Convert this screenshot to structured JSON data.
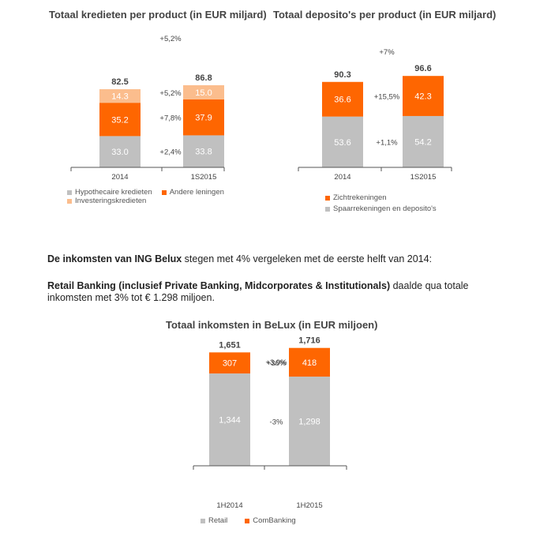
{
  "colors": {
    "grey": "#c0c0c0",
    "orange": "#fe6601",
    "peach": "#fbbd8d",
    "axis": "#555555"
  },
  "paragraphs": {
    "p1_bold": "De inkomsten van ING Belux",
    "p1_rest": " stegen met 4% vergeleken met de eerste helft van 2014:",
    "p2_bold": "Retail Banking (inclusief Private Banking, Midcorporates & Institutionals)",
    "p2_rest": " daalde qua totale inkomsten met 3% tot € 1.298 miljoen."
  },
  "chart_data": [
    {
      "type": "bar",
      "stacked": true,
      "title": "Totaal kredieten per product (in EUR miljard)",
      "categories": [
        "2014",
        "1S2015"
      ],
      "series": [
        {
          "name": "Hypothecaire kredieten",
          "color": "#c0c0c0",
          "values": [
            33.0,
            33.8
          ],
          "labels": [
            "33.0",
            "33.8"
          ]
        },
        {
          "name": "Andere leningen",
          "color": "#fe6601",
          "values": [
            35.2,
            37.9
          ],
          "labels": [
            "35.2",
            "37.9"
          ]
        },
        {
          "name": "Investeringskredieten",
          "color": "#fbbd8d",
          "values": [
            14.3,
            15.0
          ],
          "labels": [
            "14.3",
            "15.0"
          ]
        }
      ],
      "totals": [
        "82.5",
        "86.8"
      ],
      "growth": [
        "+2,4%",
        "+7,8%",
        "+5,2%"
      ],
      "total_growth": "+5,2%",
      "legend": "bottom",
      "ylim": [
        0,
        100
      ]
    },
    {
      "type": "bar",
      "stacked": true,
      "title": "Totaal deposito's per product (in EUR miljard)",
      "categories": [
        "2014",
        "1S2015"
      ],
      "series": [
        {
          "name": "Spaarrekeningen en deposito's",
          "color": "#c0c0c0",
          "values": [
            53.6,
            54.2
          ],
          "labels": [
            "53.6",
            "54.2"
          ]
        },
        {
          "name": "Zichtrekeningen",
          "color": "#fe6601",
          "values": [
            36.6,
            42.3
          ],
          "labels": [
            "36.6",
            "42.3"
          ]
        }
      ],
      "totals": [
        "90.3",
        "96.6"
      ],
      "growth": [
        "+1,1%",
        "+15,5%"
      ],
      "total_growth": "+7%",
      "legend": "bottom",
      "ylim": [
        0,
        110
      ]
    },
    {
      "type": "bar",
      "stacked": true,
      "title": "Totaal inkomsten in BeLux (in EUR miljoen)",
      "categories": [
        "1H2014",
        "1H2015"
      ],
      "series": [
        {
          "name": "Retail",
          "color": "#c0c0c0",
          "values": [
            1344,
            1298
          ],
          "labels": [
            "1,344",
            "1,298"
          ]
        },
        {
          "name": "ComBanking",
          "color": "#fe6601",
          "values": [
            307,
            418
          ],
          "labels": [
            "307",
            "418"
          ]
        }
      ],
      "totals": [
        "1,651",
        "1,716"
      ],
      "growth": [
        "-3%",
        "+36%"
      ],
      "total_growth": "+3,9%",
      "legend": "bottom",
      "ylim": [
        0,
        1900
      ]
    }
  ]
}
